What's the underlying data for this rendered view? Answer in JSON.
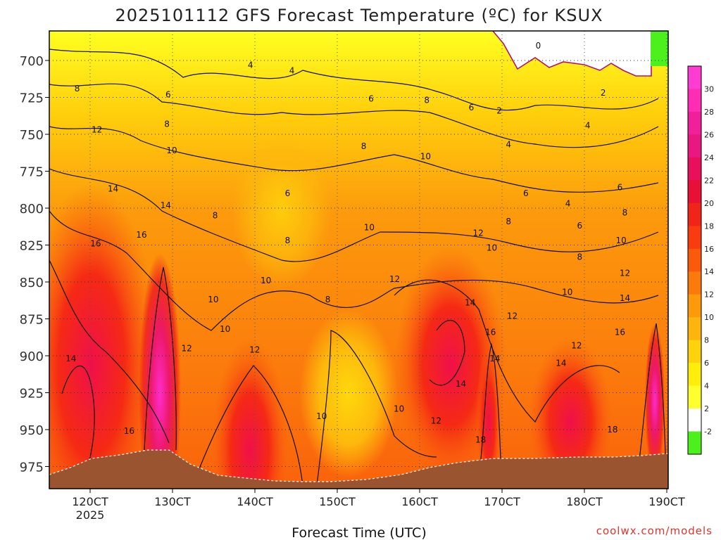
{
  "chart_data": {
    "type": "heatmap",
    "title": "2025101112 GFS Forecast Temperature (ºC) for KSUX",
    "xlabel": "Forecast Time (UTC)",
    "ylabel": "",
    "x_year_label": "2025",
    "x_ticks": [
      "120CT",
      "130CT",
      "140CT",
      "150CT",
      "160CT",
      "170CT",
      "180CT",
      "190CT"
    ],
    "y_ticks": [
      700,
      725,
      750,
      775,
      800,
      825,
      850,
      875,
      900,
      925,
      950,
      975
    ],
    "ylim": [
      975,
      680
    ],
    "colorbar": {
      "ticks": [
        30,
        28,
        26,
        24,
        22,
        20,
        18,
        16,
        14,
        12,
        10,
        8,
        6,
        4,
        2,
        -2
      ],
      "colors": [
        "#ff3cd2",
        "#ff2db4",
        "#f0209a",
        "#e81880",
        "#e8105a",
        "#e81036",
        "#f02418",
        "#f83c10",
        "#fa5a0c",
        "#fb7a0c",
        "#fc9a0c",
        "#fdb40c",
        "#fed20c",
        "#ffee0c",
        "#ffff30",
        "#ffffff",
        "#4cf01c"
      ]
    },
    "contour_labels": [
      {
        "value": "0",
        "t": 0.79,
        "p": 690
      },
      {
        "value": "2",
        "t": 0.727,
        "p": 734
      },
      {
        "value": "2",
        "t": 0.895,
        "p": 722
      },
      {
        "value": "4",
        "t": 0.325,
        "p": 703
      },
      {
        "value": "4",
        "t": 0.392,
        "p": 707
      },
      {
        "value": "4",
        "t": 0.742,
        "p": 757
      },
      {
        "value": "4",
        "t": 0.87,
        "p": 744
      },
      {
        "value": "4",
        "t": 0.838,
        "p": 797
      },
      {
        "value": "6",
        "t": 0.192,
        "p": 723
      },
      {
        "value": "6",
        "t": 0.52,
        "p": 726
      },
      {
        "value": "6",
        "t": 0.682,
        "p": 732
      },
      {
        "value": "6",
        "t": 0.385,
        "p": 790
      },
      {
        "value": "6",
        "t": 0.77,
        "p": 790
      },
      {
        "value": "6",
        "t": 0.857,
        "p": 812
      },
      {
        "value": "6",
        "t": 0.922,
        "p": 786
      },
      {
        "value": "8",
        "t": 0.045,
        "p": 719
      },
      {
        "value": "8",
        "t": 0.19,
        "p": 743
      },
      {
        "value": "8",
        "t": 0.268,
        "p": 805
      },
      {
        "value": "8",
        "t": 0.385,
        "p": 822
      },
      {
        "value": "8",
        "t": 0.508,
        "p": 758
      },
      {
        "value": "8",
        "t": 0.61,
        "p": 727
      },
      {
        "value": "8",
        "t": 0.742,
        "p": 809
      },
      {
        "value": "8",
        "t": 0.857,
        "p": 833
      },
      {
        "value": "8",
        "t": 0.45,
        "p": 862
      },
      {
        "value": "8",
        "t": 0.93,
        "p": 803
      },
      {
        "value": "10",
        "t": 0.198,
        "p": 761
      },
      {
        "value": "10",
        "t": 0.517,
        "p": 813
      },
      {
        "value": "10",
        "t": 0.608,
        "p": 765
      },
      {
        "value": "10",
        "t": 0.715,
        "p": 827
      },
      {
        "value": "10",
        "t": 0.837,
        "p": 857
      },
      {
        "value": "10",
        "t": 0.35,
        "p": 849
      },
      {
        "value": "10",
        "t": 0.265,
        "p": 862
      },
      {
        "value": "10",
        "t": 0.284,
        "p": 882
      },
      {
        "value": "10",
        "t": 0.44,
        "p": 941
      },
      {
        "value": "10",
        "t": 0.565,
        "p": 936
      },
      {
        "value": "10",
        "t": 0.924,
        "p": 822
      },
      {
        "value": "12",
        "t": 0.077,
        "p": 747
      },
      {
        "value": "12",
        "t": 0.222,
        "p": 895
      },
      {
        "value": "12",
        "t": 0.332,
        "p": 896
      },
      {
        "value": "12",
        "t": 0.558,
        "p": 848
      },
      {
        "value": "12",
        "t": 0.693,
        "p": 817
      },
      {
        "value": "12",
        "t": 0.748,
        "p": 873
      },
      {
        "value": "12",
        "t": 0.852,
        "p": 893
      },
      {
        "value": "12",
        "t": 0.625,
        "p": 944
      },
      {
        "value": "12",
        "t": 0.93,
        "p": 844
      },
      {
        "value": "14",
        "t": 0.103,
        "p": 787
      },
      {
        "value": "14",
        "t": 0.188,
        "p": 798
      },
      {
        "value": "14",
        "t": 0.035,
        "p": 902
      },
      {
        "value": "14",
        "t": 0.68,
        "p": 864
      },
      {
        "value": "14",
        "t": 0.72,
        "p": 902
      },
      {
        "value": "14",
        "t": 0.665,
        "p": 919
      },
      {
        "value": "14",
        "t": 0.827,
        "p": 905
      },
      {
        "value": "14",
        "t": 0.93,
        "p": 861
      },
      {
        "value": "16",
        "t": 0.075,
        "p": 824
      },
      {
        "value": "16",
        "t": 0.149,
        "p": 818
      },
      {
        "value": "16",
        "t": 0.129,
        "p": 951
      },
      {
        "value": "16",
        "t": 0.713,
        "p": 884
      },
      {
        "value": "16",
        "t": 0.922,
        "p": 884
      },
      {
        "value": "18",
        "t": 0.697,
        "p": 957
      },
      {
        "value": "18",
        "t": 0.91,
        "p": 950
      }
    ]
  },
  "credit": "coolwx.com/models"
}
